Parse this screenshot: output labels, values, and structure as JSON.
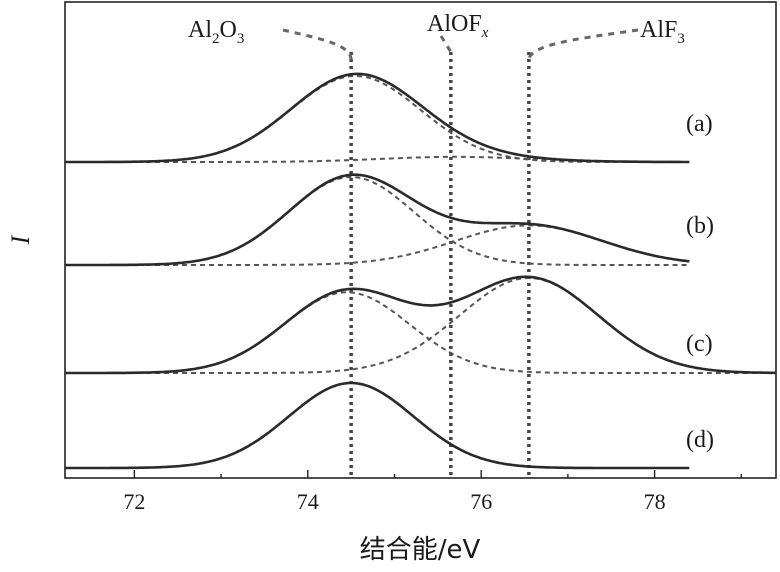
{
  "chart_data": {
    "type": "line",
    "xlabel": "结合能/eV",
    "ylabel": "I",
    "xlim": [
      71.2,
      79.4
    ],
    "x_ticks": [
      "72",
      "74",
      "76",
      "78"
    ],
    "grid": false,
    "legend": "none",
    "peak_markers": [
      {
        "label_main": "Al",
        "sub1": "2",
        "mid": "O",
        "sub2": "3",
        "position_eV": 74.5
      },
      {
        "label_main": "AlOF",
        "sub1": "x",
        "mid": "",
        "sub2": "",
        "position_eV": 75.65
      },
      {
        "label_main": "AlF",
        "sub1": "3",
        "mid": "",
        "sub2": "",
        "position_eV": 76.55
      }
    ],
    "panels": [
      {
        "label": "(a)",
        "components": [
          {
            "center": 74.55,
            "height": 1.0,
            "sigma": 0.75
          },
          {
            "center": 75.7,
            "height": 0.06,
            "sigma": 0.85
          }
        ],
        "x_end": 78.4
      },
      {
        "label": "(b)",
        "components": [
          {
            "center": 74.5,
            "height": 1.0,
            "sigma": 0.72
          },
          {
            "center": 76.55,
            "height": 0.45,
            "sigma": 0.85
          }
        ],
        "x_end": 78.4
      },
      {
        "label": "(c)",
        "components": [
          {
            "center": 74.45,
            "height": 0.85,
            "sigma": 0.72
          },
          {
            "center": 76.55,
            "height": 1.0,
            "sigma": 0.8
          }
        ],
        "x_end": 79.4
      },
      {
        "label": "(d)",
        "components": [
          {
            "center": 74.5,
            "height": 1.0,
            "sigma": 0.72
          }
        ],
        "x_end": 78.4
      }
    ]
  }
}
